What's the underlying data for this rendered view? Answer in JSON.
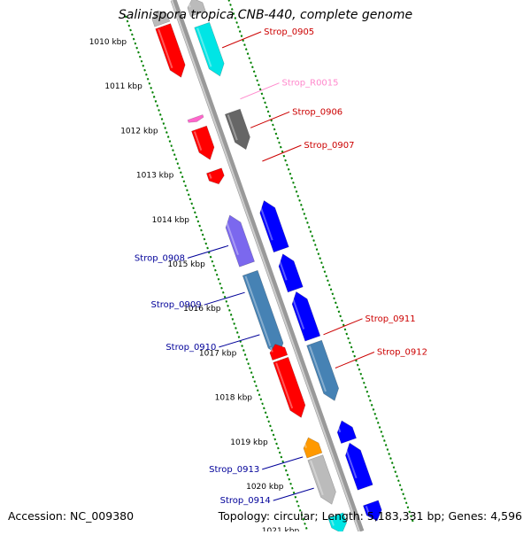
{
  "title": "Salinispora tropica CNB-440, complete genome",
  "footer": {
    "accession": "Accession: NC_009380",
    "summary": "Topology: circular; Length: 5,183,331 bp; Genes: 4,596"
  },
  "colors": {
    "red": "#ff0000",
    "cyan": "#00e5e5",
    "gray": "#bbbbbb",
    "darkgray": "#666666",
    "pink": "#ff66cc",
    "blue": "#0000ff",
    "purple": "#7b68ee",
    "steel": "#4682b4",
    "orange": "#ff9900",
    "label_red": "#cc0000",
    "label_blue": "#000099",
    "label_pink": "#ff88cc",
    "tick_green": "#008000"
  },
  "kbp_labels": [
    "1010 kbp",
    "1011 kbp",
    "1012 kbp",
    "1013 kbp",
    "1014 kbp",
    "1015 kbp",
    "1016 kbp",
    "1017 kbp",
    "1018 kbp",
    "1019 kbp",
    "1020 kbp",
    "1021 kbp"
  ],
  "features": [
    {
      "strand": "top",
      "color": "gray",
      "start": 1009.55,
      "end": 1009.85,
      "direction": "-"
    },
    {
      "strand": "top",
      "color": "red",
      "start": 1009.9,
      "end": 1011.05,
      "direction": "+"
    },
    {
      "strand": "bottom",
      "color": "gray",
      "start": 1009.55,
      "end": 1009.9,
      "direction": "-"
    },
    {
      "strand": "bottom",
      "color": "cyan",
      "start": 1010.15,
      "end": 1011.3,
      "direction": "+"
    },
    {
      "strand": "top",
      "color": "pink",
      "start": 1011.95,
      "end": 1012.05,
      "direction": "+"
    },
    {
      "strand": "top",
      "color": "red",
      "start": 1012.2,
      "end": 1012.9,
      "direction": "+"
    },
    {
      "strand": "bottom",
      "color": "darkgray",
      "start": 1012.1,
      "end": 1012.95,
      "direction": "+"
    },
    {
      "strand": "top",
      "color": "red",
      "start": 1013.15,
      "end": 1013.45,
      "direction": "+"
    },
    {
      "strand": "top",
      "color": "purple",
      "start": 1014.15,
      "end": 1015.25,
      "direction": "-"
    },
    {
      "strand": "bottom",
      "color": "blue",
      "start": 1014.1,
      "end": 1015.2,
      "direction": "-"
    },
    {
      "strand": "top",
      "color": "steel",
      "start": 1015.45,
      "end": 1017.3,
      "direction": "+"
    },
    {
      "strand": "bottom",
      "color": "blue",
      "start": 1015.3,
      "end": 1016.1,
      "direction": "-"
    },
    {
      "strand": "bottom",
      "color": "blue",
      "start": 1016.15,
      "end": 1017.2,
      "direction": "-"
    },
    {
      "strand": "top",
      "color": "red",
      "start": 1017.05,
      "end": 1017.35,
      "direction": "-"
    },
    {
      "strand": "top",
      "color": "red",
      "start": 1017.4,
      "end": 1018.7,
      "direction": "+"
    },
    {
      "strand": "bottom",
      "color": "steel",
      "start": 1017.3,
      "end": 1018.6,
      "direction": "+"
    },
    {
      "strand": "top",
      "color": "orange",
      "start": 1019.15,
      "end": 1019.55,
      "direction": "-"
    },
    {
      "strand": "top",
      "color": "gray",
      "start": 1019.6,
      "end": 1020.65,
      "direction": "+"
    },
    {
      "strand": "bottom",
      "color": "blue",
      "start": 1019.05,
      "end": 1019.5,
      "direction": "-"
    },
    {
      "strand": "bottom",
      "color": "blue",
      "start": 1019.55,
      "end": 1020.55,
      "direction": "-"
    },
    {
      "strand": "top",
      "color": "cyan",
      "start": 1020.9,
      "end": 1021.3,
      "direction": "+"
    },
    {
      "strand": "bottom",
      "color": "blue",
      "start": 1020.9,
      "end": 1021.3,
      "direction": "+"
    }
  ],
  "gene_labels": [
    {
      "text": "Strop_0905",
      "color": "label_red",
      "side": "right",
      "pos": 1010.75
    },
    {
      "text": "Strop_R0015",
      "color": "label_pink",
      "side": "right",
      "pos": 1011.9
    },
    {
      "text": "Strop_0906",
      "color": "label_red",
      "side": "right",
      "pos": 1012.55
    },
    {
      "text": "Strop_0907",
      "color": "label_red",
      "side": "right",
      "pos": 1013.3
    },
    {
      "text": "Strop_0908",
      "color": "label_blue",
      "side": "left",
      "pos": 1014.75
    },
    {
      "text": "Strop_0909",
      "color": "label_blue",
      "side": "left",
      "pos": 1015.8
    },
    {
      "text": "Strop_0910",
      "color": "label_blue",
      "side": "left",
      "pos": 1016.75
    },
    {
      "text": "Strop_0911",
      "color": "label_red",
      "side": "right",
      "pos": 1017.2
    },
    {
      "text": "Strop_0912",
      "color": "label_red",
      "side": "right",
      "pos": 1017.95
    },
    {
      "text": "Strop_0913",
      "color": "label_blue",
      "side": "left",
      "pos": 1019.5
    },
    {
      "text": "Strop_0914",
      "color": "label_blue",
      "side": "left",
      "pos": 1020.2
    }
  ]
}
